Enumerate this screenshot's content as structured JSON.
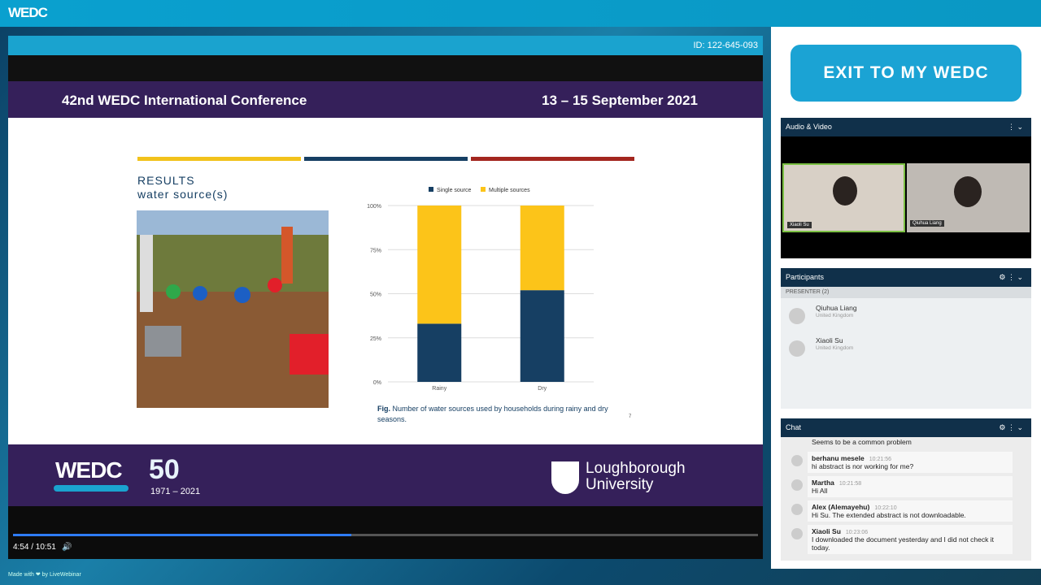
{
  "header": {
    "logo": "WEDC"
  },
  "player": {
    "meeting_id": "ID: 122-645-093",
    "time": "4:54 / 10:51"
  },
  "slide": {
    "title": "42nd WEDC International Conference",
    "dates": "13 – 15 September 2021",
    "heading": "RESULTS",
    "subheading": "water source(s)",
    "chart": {
      "type": "bar",
      "stacked": true,
      "categories": [
        "Rainy",
        "Dry"
      ],
      "series": [
        {
          "name": "Single source",
          "color": "#163f63",
          "values": [
            33,
            52
          ]
        },
        {
          "name": "Multiple sources",
          "color": "#fcc419",
          "values": [
            67,
            48
          ]
        }
      ],
      "ylim": [
        0,
        100
      ],
      "yticks": [
        {
          "value": 0,
          "label": "0%"
        },
        {
          "value": 25,
          "label": "25%"
        },
        {
          "value": 50,
          "label": "50%"
        },
        {
          "value": 75,
          "label": "75%"
        },
        {
          "value": 100,
          "label": "100%"
        }
      ],
      "grid": true
    },
    "caption_label": "Fig.",
    "caption": "Number of water sources used by households during rainy and dry seasons.",
    "page_number": "7",
    "footer_logo": "WEDC",
    "footer_anniversary": "50",
    "footer_years": "1971 – 2021",
    "university_1": "Loughborough",
    "university_2": "University"
  },
  "sidebar": {
    "exit_button": "EXIT TO MY WEDC",
    "audio_video": {
      "title": "Audio & Video",
      "tiles": [
        "Xiaoli Su",
        "Qiuhua Liang"
      ]
    },
    "participants": {
      "title": "Participants",
      "group": "PRESENTER",
      "count": "(2)",
      "people": [
        {
          "name": "Qiuhua Liang",
          "location": "United Kingdom"
        },
        {
          "name": "Xiaoli Su",
          "location": "United Kingdom"
        }
      ]
    },
    "chat": {
      "title": "Chat",
      "partial": "Seems to be a common problem",
      "messages": [
        {
          "author": "berhanu mesele",
          "time": "10:21:56",
          "text": "hi abstract is nor working for me?"
        },
        {
          "author": "Martha",
          "time": "10:21:58",
          "text": "Hi All"
        },
        {
          "author": "Alex (Alemayehu)",
          "time": "10:22:10",
          "text": "Hi Su. The extended abstract is not downloadable."
        },
        {
          "author": "Xiaoli Su",
          "time": "10:23:06",
          "text": "I downloaded the document yesterday and I did not check it today."
        }
      ]
    }
  },
  "footer": {
    "made_with": "Made with ❤ by LiveWebinar"
  }
}
